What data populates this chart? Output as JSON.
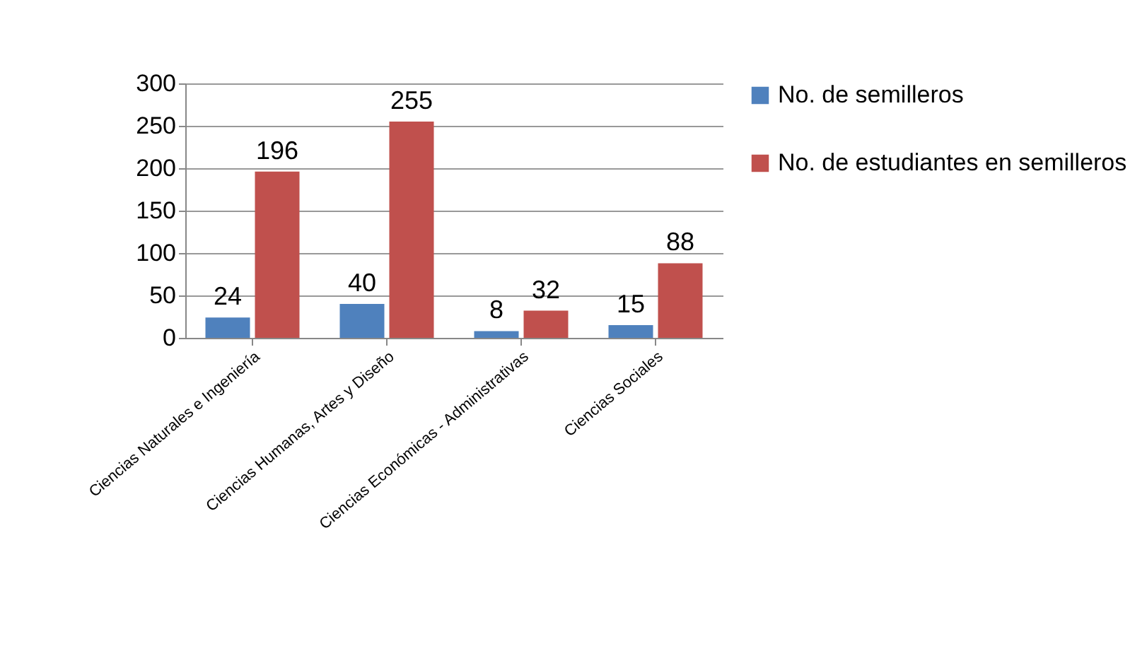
{
  "chart_data": {
    "type": "bar",
    "categories": [
      "Ciencias Naturales e Ingeniería",
      "Ciencias Humanas, Artes y Diseño",
      "Ciencias Económicas - Administrativas",
      "Ciencias Sociales"
    ],
    "series": [
      {
        "name": "No. de semilleros",
        "color": "#4f81bd",
        "values": [
          24,
          40,
          8,
          15
        ]
      },
      {
        "name": "No. de estudiantes en semilleros",
        "color": "#c0504d",
        "values": [
          196,
          255,
          32,
          88
        ]
      }
    ],
    "ylim": [
      0,
      300
    ],
    "yticks": [
      0,
      50,
      100,
      150,
      200,
      250,
      300
    ],
    "grid": "y",
    "legend": "right",
    "data_labels": true
  }
}
